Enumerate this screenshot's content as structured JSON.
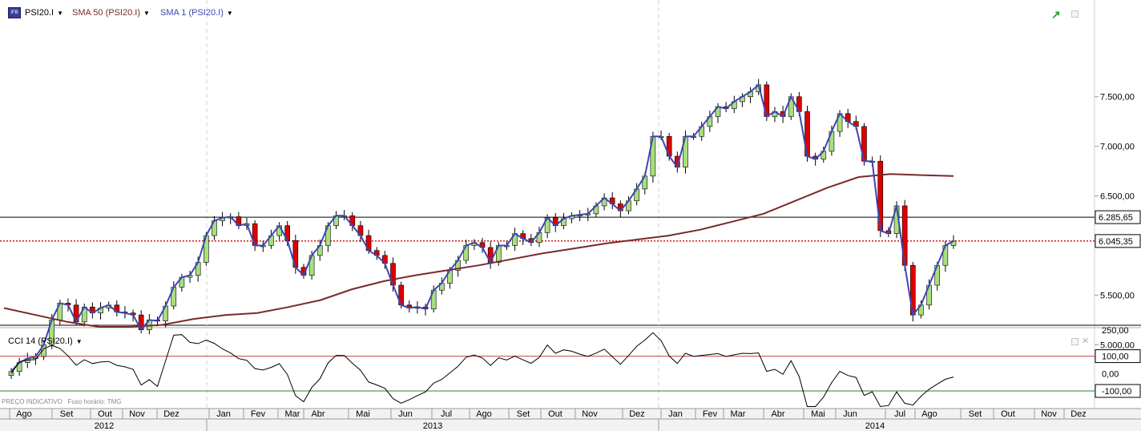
{
  "header": {
    "symbol": "PSI20.I",
    "sma50_label": "SMA 50 (PSI20.I)",
    "sma1_label": "SMA 1 (PSI20.I)"
  },
  "cci_panel": {
    "label": "CCI 14 (PSI20.I)"
  },
  "footer": {
    "mode": "PREÇO INDICATIVO",
    "timezone": "Fuso horário: TMG"
  },
  "colors": {
    "sma50": "#7a2a2a",
    "sma1": "#3c46b4",
    "candle_up": "#a8e07c",
    "candle_down": "#dd0000",
    "hline": "#000000",
    "last_price_line": "#cc0000",
    "cci_upper": "#cc4444",
    "cci_lower": "#228822"
  },
  "chart_data": {
    "type": "candlestick",
    "instrument": "PSI20.I",
    "x_axis": {
      "months": [
        "Ago",
        "Set",
        "Out",
        "Nov",
        "Dez",
        "Jan",
        "Fev",
        "Mar",
        "Abr",
        "Mai",
        "Jun",
        "Jul",
        "Ago",
        "Set",
        "Out",
        "Nov",
        "Dez",
        "Jan",
        "Fev",
        "Mar",
        "Abr",
        "Mai",
        "Jun",
        "Jul",
        "Ago",
        "Set",
        "Out",
        "Nov",
        "Dez"
      ],
      "years": [
        "2012",
        "2013",
        "2014"
      ]
    },
    "y_axis": {
      "ticks": [
        "7.500,00",
        "7.000,00",
        "6.500,00",
        "5.500,00",
        "5.000,00"
      ],
      "range": [
        4700,
        7800
      ]
    },
    "horizontal_lines": [
      {
        "value": 6285.65,
        "label": "6.285,65",
        "style": "solid"
      },
      {
        "value": 6045.35,
        "label": "6.045,35",
        "style": "dotted"
      }
    ],
    "weekly_close": [
      4730,
      4820,
      4860,
      4880,
      5000,
      5250,
      5420,
      5400,
      5230,
      5380,
      5320,
      5370,
      5400,
      5330,
      5320,
      5300,
      5150,
      5250,
      5240,
      5390,
      5580,
      5680,
      5700,
      5830,
      6100,
      6250,
      6280,
      6290,
      6200,
      6220,
      6000,
      6000,
      6100,
      6200,
      6050,
      5780,
      5700,
      5900,
      6000,
      6200,
      6300,
      6300,
      6200,
      6100,
      5950,
      5900,
      5820,
      5600,
      5400,
      5370,
      5380,
      5360,
      5550,
      5620,
      5750,
      5850,
      6000,
      6030,
      5980,
      5830,
      6000,
      6000,
      6120,
      6070,
      6030,
      6130,
      6280,
      6200,
      6270,
      6300,
      6310,
      6320,
      6400,
      6480,
      6420,
      6350,
      6450,
      6570,
      6700,
      7100,
      7100,
      6900,
      6790,
      7100,
      7100,
      7200,
      7300,
      7400,
      7380,
      7450,
      7500,
      7550,
      7620,
      7300,
      7350,
      7300,
      7500,
      7350,
      6900,
      6870,
      6950,
      7150,
      7330,
      7250,
      7200,
      6850,
      6850,
      6150,
      6120,
      6400,
      5800,
      5300,
      5400,
      5600,
      5800,
      6000,
      6045
    ],
    "sma50": [
      [
        0,
        5370
      ],
      [
        10,
        5300
      ],
      [
        20,
        5230
      ],
      [
        30,
        5180
      ],
      [
        40,
        5180
      ],
      [
        50,
        5200
      ],
      [
        60,
        5260
      ],
      [
        70,
        5300
      ],
      [
        80,
        5320
      ],
      [
        90,
        5380
      ],
      [
        100,
        5450
      ],
      [
        110,
        5560
      ],
      [
        120,
        5640
      ],
      [
        130,
        5700
      ],
      [
        140,
        5750
      ],
      [
        150,
        5800
      ],
      [
        160,
        5860
      ],
      [
        170,
        5920
      ],
      [
        180,
        5970
      ],
      [
        190,
        6020
      ],
      [
        200,
        6060
      ],
      [
        210,
        6100
      ],
      [
        220,
        6160
      ],
      [
        230,
        6240
      ],
      [
        240,
        6320
      ],
      [
        250,
        6450
      ],
      [
        260,
        6580
      ],
      [
        270,
        6690
      ],
      [
        280,
        6720
      ],
      [
        290,
        6710
      ],
      [
        300,
        6700
      ]
    ],
    "cci": {
      "label": "CCI 14 (PSI20.I)",
      "ticks": [
        "250,00",
        "100,00",
        "0,00",
        "-100,00"
      ],
      "levels": [
        100,
        -100
      ],
      "range": [
        -200,
        250
      ]
    }
  }
}
